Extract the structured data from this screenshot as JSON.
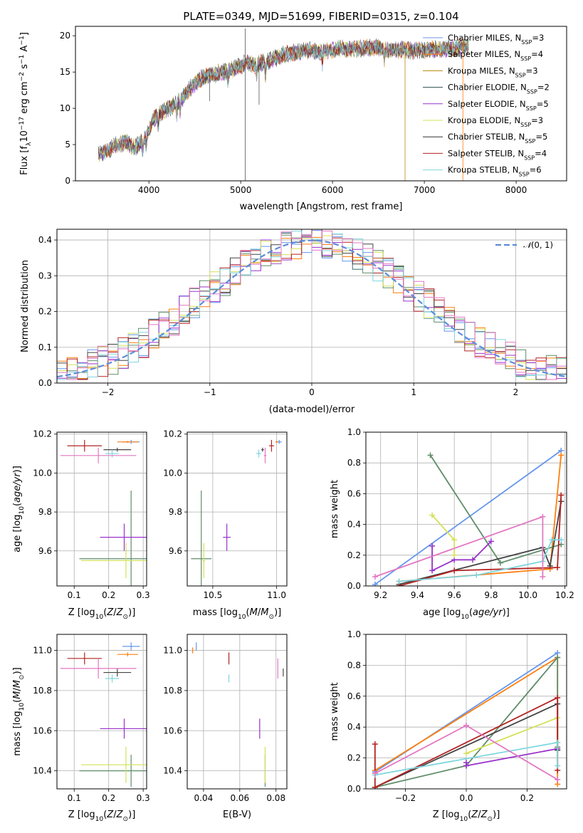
{
  "chart_data": [
    {
      "type": "line",
      "title": "PLATE=0349, MJD=51699, FIBERID=0315, z=0.104",
      "xlabel": "wavelength [Angstrom, rest frame]",
      "ylabel": "Flux [f_λ 10^-17 erg cm^-2 s^-1 A^-1]",
      "xlim": [
        3200,
        8550
      ],
      "ylim": [
        0,
        21.3
      ],
      "xticks": [
        4000,
        5000,
        6000,
        7000,
        8000
      ],
      "yticks": [
        0,
        5,
        10,
        15,
        20
      ],
      "grid": false,
      "legend_position": "top-right",
      "continuum": [
        [
          3450,
          3.6
        ],
        [
          3550,
          4.2
        ],
        [
          3650,
          5.0
        ],
        [
          3750,
          5.3
        ],
        [
          3850,
          4.6
        ],
        [
          3950,
          5.7
        ],
        [
          4050,
          8.5
        ],
        [
          4150,
          9.5
        ],
        [
          4250,
          10.3
        ],
        [
          4350,
          11.2
        ],
        [
          4450,
          12.8
        ],
        [
          4550,
          14.0
        ],
        [
          4650,
          14.6
        ],
        [
          4750,
          14.8
        ],
        [
          4850,
          15.1
        ],
        [
          4950,
          15.6
        ],
        [
          5050,
          16.2
        ],
        [
          5150,
          16.0
        ],
        [
          5250,
          16.3
        ],
        [
          5350,
          16.8
        ],
        [
          5450,
          17.3
        ],
        [
          5550,
          17.6
        ],
        [
          5650,
          17.8
        ],
        [
          5750,
          18.0
        ],
        [
          5850,
          17.8
        ],
        [
          5950,
          17.9
        ],
        [
          6050,
          18.2
        ],
        [
          6150,
          18.2
        ],
        [
          6250,
          18.1
        ],
        [
          6350,
          18.3
        ],
        [
          6450,
          18.4
        ],
        [
          6550,
          18.2
        ],
        [
          6650,
          18.0
        ],
        [
          6750,
          18.1
        ],
        [
          6850,
          18.0
        ],
        [
          6950,
          18.0
        ],
        [
          7050,
          18.1
        ],
        [
          7150,
          18.1
        ],
        [
          7250,
          18.2
        ],
        [
          7350,
          18.3
        ],
        [
          7450,
          18.5
        ]
      ],
      "series": [
        {
          "name": "Chabrier MILES, N_SSP=3",
          "color": "#6495ed"
        },
        {
          "name": "Salpeter MILES, N_SSP=4",
          "color": "#ff7f0e"
        },
        {
          "name": "Kroupa MILES, N_SSP=3",
          "color": "#b8860b"
        },
        {
          "name": "Chabrier ELODIE, N_SSP=2",
          "color": "#2f4f4f"
        },
        {
          "name": "Salpeter ELODIE, N_SSP=5",
          "color": "#9932cc"
        },
        {
          "name": "Kroupa ELODIE, N_SSP=3",
          "color": "#d4e157"
        },
        {
          "name": "Chabrier STELIB, N_SSP=5",
          "color": "#333333"
        },
        {
          "name": "Salpeter STELIB, N_SSP=4",
          "color": "#b22222"
        },
        {
          "name": "Kroupa STELIB, N_SSP=6",
          "color": "#7ed6df"
        }
      ]
    },
    {
      "type": "line",
      "xlabel": "(data-model)/error",
      "ylabel": "Normed distribution",
      "xlim": [
        -2.5,
        2.5
      ],
      "ylim": [
        0,
        0.43
      ],
      "xticks": [
        -2,
        -1,
        0,
        1,
        2
      ],
      "yticks": [
        0.0,
        0.1,
        0.2,
        0.3,
        0.4
      ],
      "grid": true,
      "legend_position": "top-right",
      "reference": {
        "name": "N(0,1)",
        "color": "#5b8dd9",
        "style": "dashed"
      },
      "histogram_bins": [
        -2.5,
        2.5,
        50
      ],
      "histogram_colors": [
        "#6495ed",
        "#ff7f0e",
        "#5f8d6a",
        "#9932cc",
        "#d4e157",
        "#444444",
        "#b22222",
        "#7ed6df",
        "#e377c2"
      ]
    },
    {
      "type": "scatter",
      "xlabel": "Z [log10(Z/Z⊙)]",
      "ylabel": "age  [log10(age/yr)]",
      "xlim": [
        0.05,
        0.31
      ],
      "ylim": [
        9.42,
        10.21
      ],
      "xticks": [
        0.1,
        0.2,
        0.3
      ],
      "yticks": [
        9.6,
        9.8,
        10.0,
        10.2
      ],
      "grid": true,
      "points": [
        {
          "x": 0.265,
          "y": 10.16,
          "xerr": 0.025,
          "yerr": 0.01,
          "color": "#6495ed"
        },
        {
          "x": 0.255,
          "y": 10.16,
          "xerr": 0.03,
          "yerr": 0.005,
          "color": "#ff7f0e"
        },
        {
          "x": 0.265,
          "y": 9.56,
          "xerr": 0.15,
          "yerr": 0.35,
          "color": "#5f8d6a"
        },
        {
          "x": 0.245,
          "y": 9.67,
          "xerr": 0.07,
          "yerr": 0.07,
          "color": "#9932cc"
        },
        {
          "x": 0.25,
          "y": 9.55,
          "xerr": 0.13,
          "yerr": 0.09,
          "color": "#d4e157"
        },
        {
          "x": 0.225,
          "y": 10.12,
          "xerr": 0.04,
          "yerr": 0.01,
          "color": "#444444"
        },
        {
          "x": 0.13,
          "y": 10.14,
          "xerr": 0.05,
          "yerr": 0.03,
          "color": "#b22222"
        },
        {
          "x": 0.21,
          "y": 10.1,
          "xerr": 0.02,
          "yerr": 0.02,
          "color": "#7ed6df"
        },
        {
          "x": 0.17,
          "y": 10.09,
          "xerr": 0.11,
          "yerr": 0.04,
          "color": "#e377c2"
        }
      ]
    },
    {
      "type": "scatter",
      "xlabel": "mass [log10(M/M⊙)]",
      "xlim": [
        10.3,
        11.08
      ],
      "ylim": [
        9.42,
        10.21
      ],
      "xticks": [
        10.5,
        11.0
      ],
      "yticks": [
        9.6,
        9.8,
        10.0,
        10.2
      ],
      "grid": true,
      "points": [
        {
          "x": 11.02,
          "y": 10.16,
          "xerr": 0.02,
          "yerr": 0.01,
          "color": "#6495ed"
        },
        {
          "x": 11.0,
          "y": 10.16,
          "xerr": 0.01,
          "yerr": 0.005,
          "color": "#ff7f0e"
        },
        {
          "x": 10.41,
          "y": 9.56,
          "xerr": 0.08,
          "yerr": 0.35,
          "color": "#5f8d6a"
        },
        {
          "x": 10.61,
          "y": 9.67,
          "xerr": 0.03,
          "yerr": 0.07,
          "color": "#9932cc"
        },
        {
          "x": 10.43,
          "y": 9.55,
          "xerr": 0.01,
          "yerr": 0.09,
          "color": "#d4e157"
        },
        {
          "x": 10.89,
          "y": 10.12,
          "xerr": 0.01,
          "yerr": 0.01,
          "color": "#444444"
        },
        {
          "x": 10.96,
          "y": 10.14,
          "xerr": 0.02,
          "yerr": 0.03,
          "color": "#b22222"
        },
        {
          "x": 10.86,
          "y": 10.1,
          "xerr": 0.02,
          "yerr": 0.02,
          "color": "#7ed6df"
        },
        {
          "x": 10.91,
          "y": 10.09,
          "xerr": 0.01,
          "yerr": 0.04,
          "color": "#e377c2"
        }
      ]
    },
    {
      "type": "line",
      "xlabel": "age  [log10(age/yr)]",
      "ylabel": "mass weight",
      "xlim": [
        9.12,
        10.21
      ],
      "ylim": [
        0.0,
        1.0
      ],
      "xticks": [
        9.2,
        9.4,
        9.6,
        9.8,
        10.0,
        10.2
      ],
      "yticks": [
        0.0,
        0.2,
        0.4,
        0.6,
        0.8,
        1.0
      ],
      "grid": true,
      "series": [
        {
          "color": "#6495ed",
          "x": [
            9.17,
            10.18
          ],
          "y": [
            0.01,
            0.88
          ]
        },
        {
          "color": "#ff7f0e",
          "x": [
            9.3,
            10.12,
            10.18
          ],
          "y": [
            0.03,
            0.11,
            0.85
          ]
        },
        {
          "color": "#5f8d6a",
          "x": [
            9.47,
            9.85,
            10.18
          ],
          "y": [
            0.85,
            0.15,
            0.27
          ]
        },
        {
          "color": "#9932cc",
          "x": [
            9.48,
            9.48,
            9.6,
            9.7,
            9.8
          ],
          "y": [
            0.26,
            0.1,
            0.17,
            0.17,
            0.29
          ]
        },
        {
          "color": "#d4e157",
          "x": [
            9.48,
            9.6,
            9.6
          ],
          "y": [
            0.46,
            0.3,
            0.2
          ]
        },
        {
          "color": "#444444",
          "x": [
            9.3,
            10.08,
            10.12,
            10.18
          ],
          "y": [
            0.01,
            0.25,
            0.13,
            0.55
          ]
        },
        {
          "color": "#b22222",
          "x": [
            9.3,
            9.6,
            10.16,
            10.18
          ],
          "y": [
            0.0,
            0.1,
            0.12,
            0.59
          ]
        },
        {
          "color": "#7ed6df",
          "x": [
            9.3,
            9.72,
            10.08,
            10.13,
            10.18
          ],
          "y": [
            0.03,
            0.07,
            0.16,
            0.3,
            0.3
          ]
        },
        {
          "color": "#e377c2",
          "x": [
            9.17,
            10.08,
            10.08
          ],
          "y": [
            0.06,
            0.45,
            0.06
          ]
        }
      ]
    },
    {
      "type": "scatter",
      "xlabel": "Z [log10(Z/Z⊙)]",
      "ylabel": "mass [log10(M/M⊙)]",
      "xlim": [
        0.05,
        0.31
      ],
      "ylim": [
        10.31,
        11.08
      ],
      "xticks": [
        0.1,
        0.2,
        0.3
      ],
      "yticks": [
        10.4,
        10.6,
        10.8,
        11.0
      ],
      "grid": true,
      "points": [
        {
          "x": 0.265,
          "y": 11.02,
          "xerr": 0.025,
          "yerr": 0.02,
          "color": "#6495ed"
        },
        {
          "x": 0.255,
          "y": 10.98,
          "xerr": 0.03,
          "yerr": 0.01,
          "color": "#ff7f0e"
        },
        {
          "x": 0.265,
          "y": 10.4,
          "xerr": 0.15,
          "yerr": 0.08,
          "color": "#5f8d6a"
        },
        {
          "x": 0.245,
          "y": 10.61,
          "xerr": 0.07,
          "yerr": 0.05,
          "color": "#9932cc"
        },
        {
          "x": 0.25,
          "y": 10.43,
          "xerr": 0.13,
          "yerr": 0.09,
          "color": "#d4e157"
        },
        {
          "x": 0.225,
          "y": 10.89,
          "xerr": 0.04,
          "yerr": 0.02,
          "color": "#444444"
        },
        {
          "x": 0.13,
          "y": 10.96,
          "xerr": 0.05,
          "yerr": 0.03,
          "color": "#b22222"
        },
        {
          "x": 0.21,
          "y": 10.86,
          "xerr": 0.02,
          "yerr": 0.02,
          "color": "#7ed6df"
        },
        {
          "x": 0.17,
          "y": 10.91,
          "xerr": 0.11,
          "yerr": 0.05,
          "color": "#e377c2"
        }
      ]
    },
    {
      "type": "scatter",
      "xlabel": "E(B-V)",
      "xlim": [
        0.031,
        0.086
      ],
      "ylim": [
        10.31,
        11.08
      ],
      "xticks": [
        0.04,
        0.06,
        0.08
      ],
      "yticks": [
        10.4,
        10.6,
        10.8,
        11.0
      ],
      "grid": true,
      "points": [
        {
          "x": 0.036,
          "y": 11.02,
          "yerr": 0.02,
          "color": "#6495ed"
        },
        {
          "x": 0.034,
          "y": 11.0,
          "yerr": 0.015,
          "color": "#ff7f0e"
        },
        {
          "x": 0.074,
          "y": 10.4,
          "yerr": 0.08,
          "color": "#5f8d6a"
        },
        {
          "x": 0.071,
          "y": 10.61,
          "yerr": 0.05,
          "color": "#9932cc"
        },
        {
          "x": 0.074,
          "y": 10.43,
          "yerr": 0.09,
          "color": "#d4e157"
        },
        {
          "x": 0.084,
          "y": 10.89,
          "yerr": 0.02,
          "color": "#444444"
        },
        {
          "x": 0.054,
          "y": 10.96,
          "yerr": 0.03,
          "color": "#b22222"
        },
        {
          "x": 0.054,
          "y": 10.86,
          "yerr": 0.02,
          "color": "#7ed6df"
        },
        {
          "x": 0.081,
          "y": 10.91,
          "yerr": 0.05,
          "color": "#e377c2"
        }
      ]
    },
    {
      "type": "line",
      "xlabel": "Z [log10(Z/Z⊙)]",
      "ylabel": "mass weight",
      "xlim": [
        -0.33,
        0.33
      ],
      "ylim": [
        0.0,
        1.0
      ],
      "xticks": [
        -0.2,
        0.0,
        0.2
      ],
      "yticks": [
        0.0,
        0.2,
        0.4,
        0.6,
        0.8,
        1.0
      ],
      "grid": true,
      "series": [
        {
          "color": "#6495ed",
          "x": [
            -0.3,
            0.3
          ],
          "y": [
            0.11,
            0.88
          ]
        },
        {
          "color": "#ff7f0e",
          "x": [
            -0.3,
            0.3,
            0.3
          ],
          "y": [
            0.12,
            0.85,
            0.03
          ]
        },
        {
          "color": "#5f8d6a",
          "x": [
            -0.3,
            0.0,
            0.3,
            0.3
          ],
          "y": [
            0.01,
            0.15,
            0.85,
            0.27
          ]
        },
        {
          "color": "#9932cc",
          "x": [
            0.0,
            0.0,
            0.3
          ],
          "y": [
            0.17,
            0.15,
            0.26
          ]
        },
        {
          "color": "#d4e157",
          "x": [
            0.0,
            0.3,
            0.3
          ],
          "y": [
            0.23,
            0.46,
            0.3
          ]
        },
        {
          "color": "#444444",
          "x": [
            -0.3,
            0.3,
            0.3
          ],
          "y": [
            0.01,
            0.55,
            0.25
          ]
        },
        {
          "color": "#b22222",
          "x": [
            -0.3,
            -0.3,
            0.3,
            0.3
          ],
          "y": [
            0.29,
            0.01,
            0.59,
            0.12
          ]
        },
        {
          "color": "#7ed6df",
          "x": [
            -0.3,
            0.3,
            0.3
          ],
          "y": [
            0.09,
            0.3,
            0.15
          ]
        },
        {
          "color": "#e377c2",
          "x": [
            -0.3,
            0.0,
            0.3
          ],
          "y": [
            0.1,
            0.41,
            0.06
          ]
        }
      ]
    }
  ]
}
